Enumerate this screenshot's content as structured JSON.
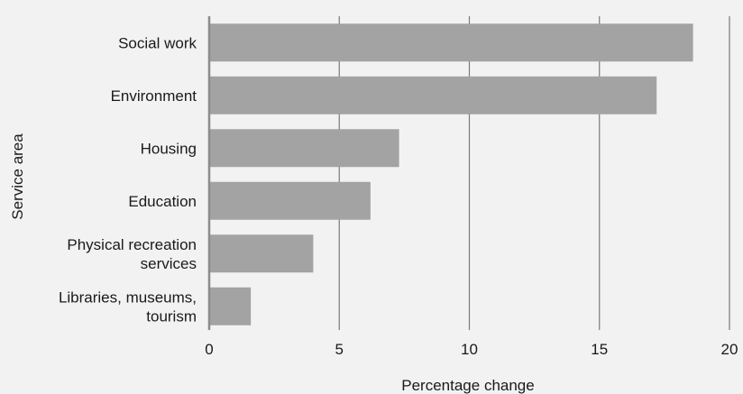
{
  "chart_data": {
    "type": "bar",
    "orientation": "horizontal",
    "categories": [
      "Social work",
      "Environment",
      "Housing",
      "Education",
      "Physical recreation services",
      "Libraries, museums, tourism"
    ],
    "category_lines": [
      [
        "Social work"
      ],
      [
        "Environment"
      ],
      [
        "Housing"
      ],
      [
        "Education"
      ],
      [
        "Physical recreation",
        "services"
      ],
      [
        "Libraries, museums,",
        "tourism"
      ]
    ],
    "values": [
      18.6,
      17.2,
      7.3,
      6.2,
      4.0,
      1.6
    ],
    "xlabel": "Percentage change",
    "ylabel": "Service area",
    "xlim": [
      0,
      20
    ],
    "xticks": [
      "0",
      "5",
      "10",
      "15",
      "20"
    ],
    "grid": "vertical",
    "bar_color": "#a3a3a3",
    "grid_color": "#7a7a7a",
    "background": "#f2f2f2"
  }
}
